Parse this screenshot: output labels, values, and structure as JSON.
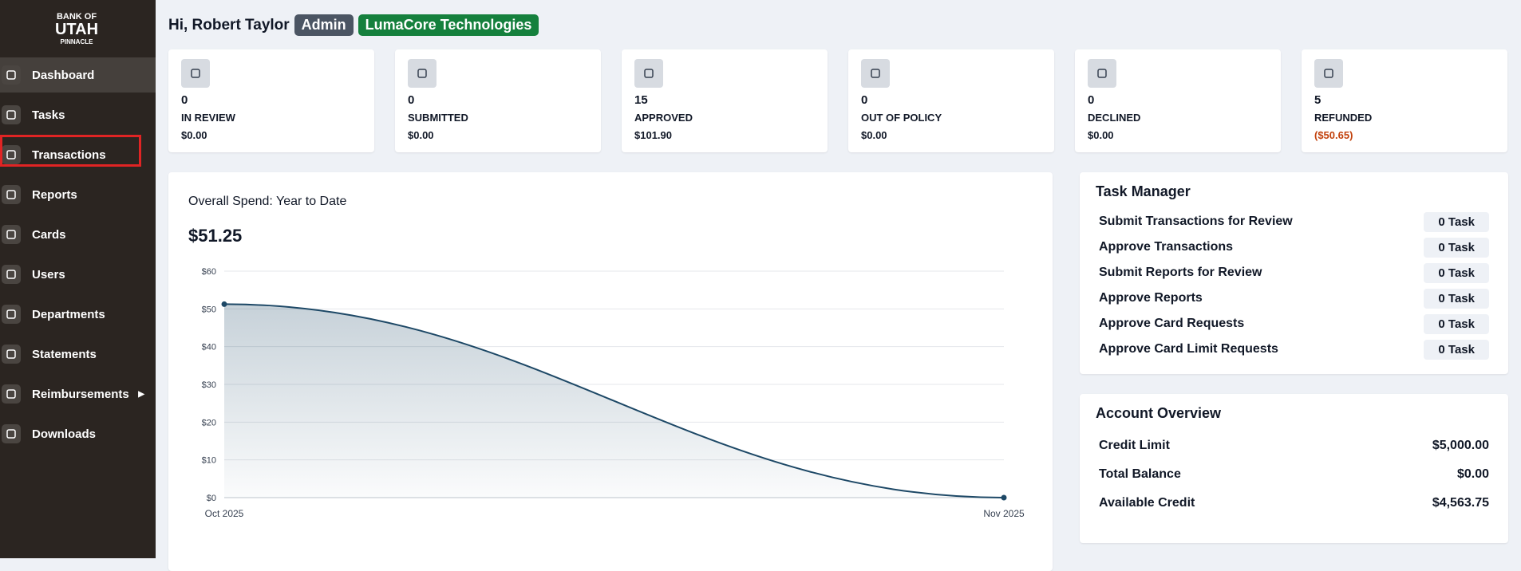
{
  "logo": {
    "line1": "BANK OF",
    "line2": "UTAH",
    "line3": "PINNACLE"
  },
  "nav": [
    {
      "label": "Dashboard",
      "active": true
    },
    {
      "label": "Tasks"
    },
    {
      "label": "Transactions",
      "highlighted": true
    },
    {
      "label": "Reports"
    },
    {
      "label": "Cards"
    },
    {
      "label": "Users"
    },
    {
      "label": "Departments"
    },
    {
      "label": "Statements"
    },
    {
      "label": "Reimbursements",
      "submenu": true
    },
    {
      "label": "Downloads"
    }
  ],
  "header": {
    "greeting": "Hi, Robert Taylor",
    "role": "Admin",
    "company": "LumaCore Technologies"
  },
  "stats": [
    {
      "count": 0,
      "label": "IN REVIEW",
      "amount": "$0.00"
    },
    {
      "count": 0,
      "label": "SUBMITTED",
      "amount": "$0.00"
    },
    {
      "count": 15,
      "label": "APPROVED",
      "amount": "$101.90"
    },
    {
      "count": 0,
      "label": "OUT OF POLICY",
      "amount": "$0.00"
    },
    {
      "count": 0,
      "label": "DECLINED",
      "amount": "$0.00"
    },
    {
      "count": 5,
      "label": "REFUNDED",
      "amount": "($50.65)",
      "amount_color": "#c2410c"
    }
  ],
  "chart_data": {
    "type": "line",
    "title": "Overall Spend: Year to Date",
    "total": "$51.25",
    "categories": [
      "Oct 2025",
      "Nov 2025"
    ],
    "values": [
      51.25,
      0
    ],
    "color": "#1d4866",
    "ylim": [
      0,
      60
    ],
    "yticks": [
      {
        "value": 0,
        "label": "$0"
      },
      {
        "value": 10,
        "label": "$10"
      },
      {
        "value": 20,
        "label": "$20"
      },
      {
        "value": 30,
        "label": "$30"
      },
      {
        "value": 40,
        "label": "$40"
      },
      {
        "value": 50,
        "label": "$50"
      },
      {
        "value": 60,
        "label": "$60"
      }
    ],
    "grid": true
  },
  "task_manager": {
    "title": "Task Manager",
    "tasks": [
      {
        "label": "Submit Transactions for Review",
        "count": "0 Task"
      },
      {
        "label": "Approve Transactions",
        "count": "0 Task"
      },
      {
        "label": "Submit Reports for Review",
        "count": "0 Task"
      },
      {
        "label": "Approve Reports",
        "count": "0 Task"
      },
      {
        "label": "Approve Card Requests",
        "count": "0 Task"
      },
      {
        "label": "Approve Card Limit Requests",
        "count": "0 Task"
      }
    ]
  },
  "account_overview": {
    "title": "Account Overview",
    "rows": [
      {
        "label": "Credit Limit",
        "value": "$5,000.00"
      },
      {
        "label": "Total Balance",
        "value": "$0.00"
      },
      {
        "label": "Available Credit",
        "value": "$4,563.75"
      }
    ]
  }
}
